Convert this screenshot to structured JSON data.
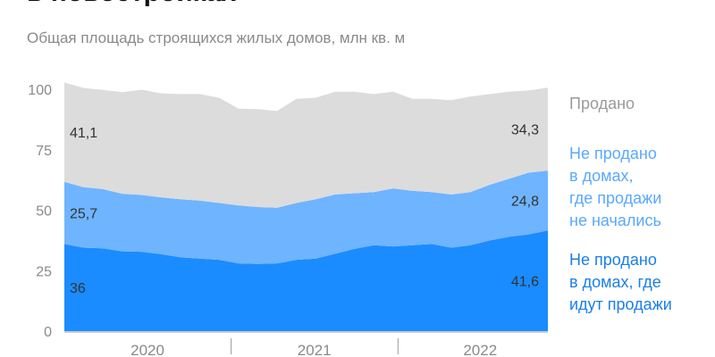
{
  "title": "в новостройках",
  "subtitle": "Общая площадь строящихся жилых домов, млн кв. м",
  "chart_data": {
    "type": "area",
    "stacked": true,
    "title": "в новостройках",
    "subtitle": "Общая площадь строящихся жилых домов, млн кв. м",
    "ylim": [
      0,
      100
    ],
    "yticks": [
      0,
      25,
      50,
      75,
      100
    ],
    "xticks": [
      "2020",
      "2021",
      "2022"
    ],
    "grid": false,
    "legend": "right",
    "series": [
      {
        "name": "Не продано в домах, где идут продажи",
        "color": "#1a8cff",
        "values": [
          36,
          34.5,
          34.2,
          33,
          32.8,
          31.8,
          30.5,
          30,
          29.5,
          28,
          27.8,
          28,
          29.5,
          30,
          32,
          34,
          35.5,
          35,
          35.5,
          36,
          34.5,
          35.5,
          37.5,
          39,
          40,
          41.6
        ]
      },
      {
        "name": "Не продано в домах, где продажи не начались",
        "color": "#6fb4ff",
        "values": [
          25.7,
          25,
          24.5,
          23.8,
          23.5,
          23.5,
          24,
          24,
          23.5,
          24,
          23.5,
          23,
          23.5,
          24.5,
          24.5,
          23,
          22,
          24,
          22.5,
          21.5,
          22,
          22,
          23,
          24,
          25.5,
          24.8
        ]
      },
      {
        "name": "Продано",
        "color": "#dcdcdc",
        "values": [
          41.1,
          41,
          41,
          42,
          43.5,
          43,
          43.5,
          44,
          43.5,
          40,
          40.5,
          40,
          43,
          42,
          42.5,
          42,
          40.5,
          40,
          38,
          38.5,
          39,
          39.5,
          37.5,
          36,
          34,
          34.3
        ]
      }
    ],
    "annotations": [
      {
        "series": 0,
        "position": "start",
        "text": "36"
      },
      {
        "series": 0,
        "position": "end",
        "text": "41,6"
      },
      {
        "series": 1,
        "position": "start",
        "text": "25,7"
      },
      {
        "series": 1,
        "position": "end",
        "text": "24,8"
      },
      {
        "series": 2,
        "position": "start",
        "text": "41,1"
      },
      {
        "series": 2,
        "position": "end",
        "text": "34,3"
      }
    ]
  },
  "legend": {
    "sold": "Продано",
    "not_started": "Не продано\nв домах,\nгде продажи\nне начались",
    "selling": "Не продано\nв домах, где\nидут продажи"
  },
  "colors": {
    "sold_text": "#9a9a9a",
    "not_started_text": "#5aa8ff",
    "selling_text": "#1a7fe8"
  }
}
